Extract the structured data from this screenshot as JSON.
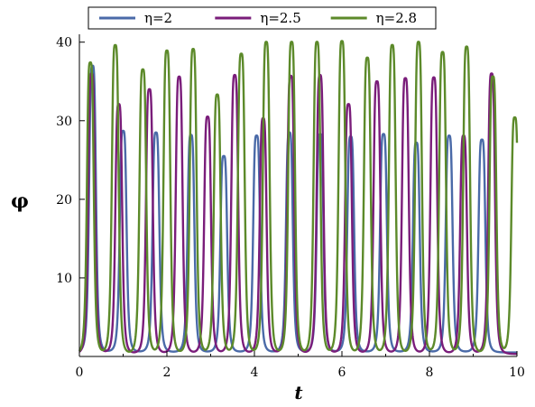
{
  "chart_data": {
    "type": "line",
    "title": "",
    "xlabel": "t",
    "ylabel": "φ",
    "xlim": [
      0,
      10
    ],
    "ylim": [
      0,
      41
    ],
    "grid": false,
    "legend_position": "top",
    "x_ticks": [
      0,
      2,
      4,
      6,
      8,
      10
    ],
    "x_tick_labels": [
      "0",
      "2",
      "4",
      "6",
      "8",
      "10"
    ],
    "y_ticks": [
      10,
      20,
      30,
      40
    ],
    "y_tick_labels": [
      "10",
      "20",
      "30",
      "40"
    ],
    "series": [
      {
        "name": "η=2",
        "color": "#4a6aa8",
        "peak_t": [
          0.3,
          1.0,
          1.75,
          2.55,
          3.3,
          4.05,
          4.8,
          5.5,
          6.2,
          6.95,
          7.7,
          8.45,
          9.2
        ],
        "peak_phi": [
          37,
          28.7,
          28.5,
          28.2,
          25.5,
          28.1,
          28.5,
          28.3,
          28.0,
          28.3,
          27.2,
          28.1,
          27.6
        ],
        "baseline": 0.5
      },
      {
        "name": "η=2.5",
        "color": "#7a1d7a",
        "peak_t": [
          0.28,
          0.9,
          1.6,
          2.28,
          2.93,
          3.55,
          4.2,
          4.83,
          5.5,
          6.15,
          6.8,
          7.45,
          8.1,
          8.78,
          9.42
        ],
        "peak_phi": [
          36,
          32.1,
          34.0,
          35.6,
          30.5,
          35.8,
          30.3,
          35.7,
          35.8,
          32.1,
          35.0,
          35.4,
          35.5,
          28.1,
          36.0
        ],
        "baseline": 0.3
      },
      {
        "name": "η=2.8",
        "color": "#5c8a2a",
        "peak_t": [
          0.25,
          0.82,
          1.45,
          2.0,
          2.6,
          3.15,
          3.7,
          4.27,
          4.85,
          5.43,
          6.0,
          6.58,
          7.15,
          7.75,
          8.3,
          8.85,
          9.45,
          9.95
        ],
        "peak_phi": [
          37.4,
          39.6,
          36.5,
          38.9,
          39.1,
          33.3,
          38.5,
          40.0,
          40.0,
          40.0,
          40.1,
          38.0,
          39.6,
          40.0,
          38.7,
          39.4,
          35.6,
          30.4
        ],
        "baseline": 0.2
      }
    ]
  }
}
